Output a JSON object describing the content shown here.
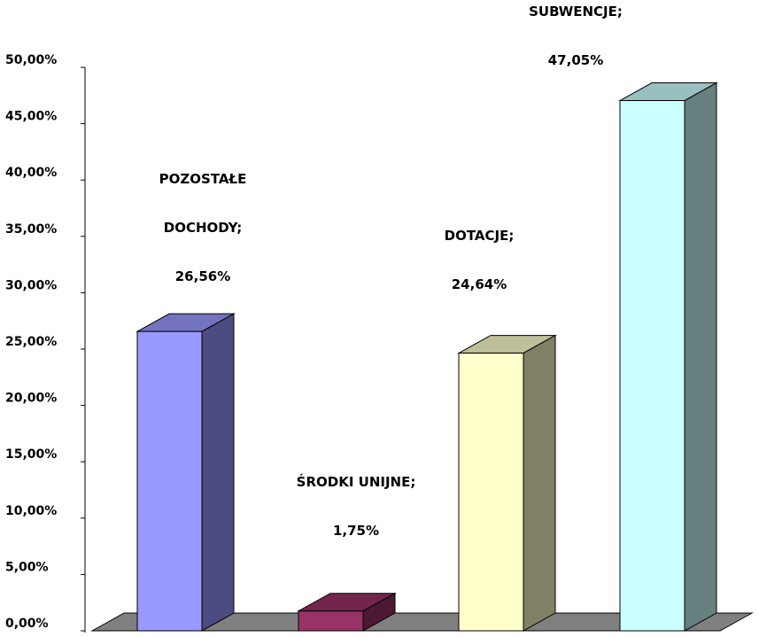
{
  "chart_data": {
    "type": "bar",
    "title": "",
    "xlabel": "",
    "ylabel": "",
    "ylim": [
      0,
      50
    ],
    "yticks": [
      "0,00%",
      "5,00%",
      "10,00%",
      "15,00%",
      "20,00%",
      "25,00%",
      "30,00%",
      "35,00%",
      "40,00%",
      "45,00%",
      "50,00%"
    ],
    "grid": false,
    "legend": "none",
    "style": "3d",
    "categories": [
      "POZOSTAŁE DOCHODY",
      "ŚRODKI UNIJNE",
      "DOTACJE",
      "SUBWENCJE"
    ],
    "values": [
      26.56,
      1.75,
      24.64,
      47.05
    ],
    "data_labels": [
      [
        "POZOSTAŁE",
        "DOCHODY;",
        "26,56%"
      ],
      [
        "ŚRODKI UNIJNE;",
        "1,75%"
      ],
      [
        "DOTACJE;",
        "24,64%"
      ],
      [
        "SUBWENCJE;",
        "47,05%"
      ]
    ],
    "colors": [
      {
        "front": "#9999FF",
        "side": "#4C4C80",
        "top": "#7373BF"
      },
      {
        "front": "#993366",
        "side": "#4C1933",
        "top": "#73264C"
      },
      {
        "front": "#FFFFCC",
        "side": "#808066",
        "top": "#BFBF99"
      },
      {
        "front": "#CCFFFF",
        "side": "#668080",
        "top": "#99BFBF"
      }
    ],
    "floor_color": "#808080"
  }
}
